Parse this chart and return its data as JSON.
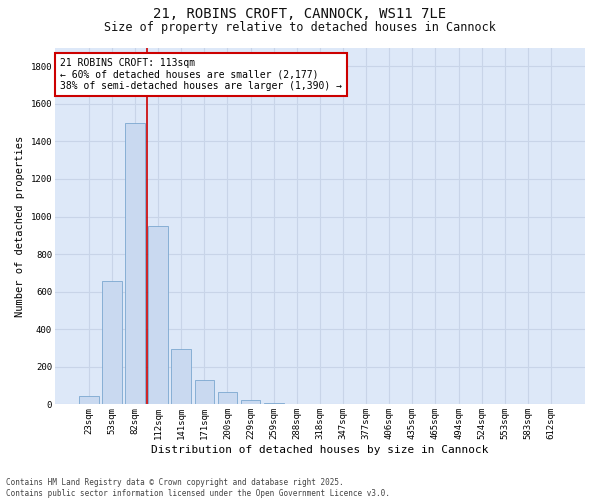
{
  "title_line1": "21, ROBINS CROFT, CANNOCK, WS11 7LE",
  "title_line2": "Size of property relative to detached houses in Cannock",
  "xlabel": "Distribution of detached houses by size in Cannock",
  "ylabel": "Number of detached properties",
  "categories": [
    "23sqm",
    "53sqm",
    "82sqm",
    "112sqm",
    "141sqm",
    "171sqm",
    "200sqm",
    "229sqm",
    "259sqm",
    "288sqm",
    "318sqm",
    "347sqm",
    "377sqm",
    "406sqm",
    "435sqm",
    "465sqm",
    "494sqm",
    "524sqm",
    "553sqm",
    "583sqm",
    "612sqm"
  ],
  "values": [
    45,
    655,
    1500,
    950,
    295,
    130,
    65,
    25,
    10,
    0,
    0,
    0,
    0,
    0,
    0,
    0,
    0,
    0,
    0,
    0,
    0
  ],
  "bar_color": "#c9d9f0",
  "bar_edge_color": "#7ba7d0",
  "grid_color": "#c8d4e8",
  "plot_bg_color": "#dde8f8",
  "figure_bg_color": "#ffffff",
  "annotation_text": "21 ROBINS CROFT: 113sqm\n← 60% of detached houses are smaller (2,177)\n38% of semi-detached houses are larger (1,390) →",
  "annotation_box_color": "#ffffff",
  "annotation_box_edge": "#cc0000",
  "vline_x_index": 2.53,
  "vline_color": "#cc0000",
  "ylim": [
    0,
    1900
  ],
  "yticks": [
    0,
    200,
    400,
    600,
    800,
    1000,
    1200,
    1400,
    1600,
    1800
  ],
  "footnote_line1": "Contains HM Land Registry data © Crown copyright and database right 2025.",
  "footnote_line2": "Contains public sector information licensed under the Open Government Licence v3.0.",
  "title_fontsize": 10,
  "subtitle_fontsize": 8.5,
  "xlabel_fontsize": 8,
  "ylabel_fontsize": 7.5,
  "tick_fontsize": 6.5,
  "annot_fontsize": 7,
  "footnote_fontsize": 5.5
}
